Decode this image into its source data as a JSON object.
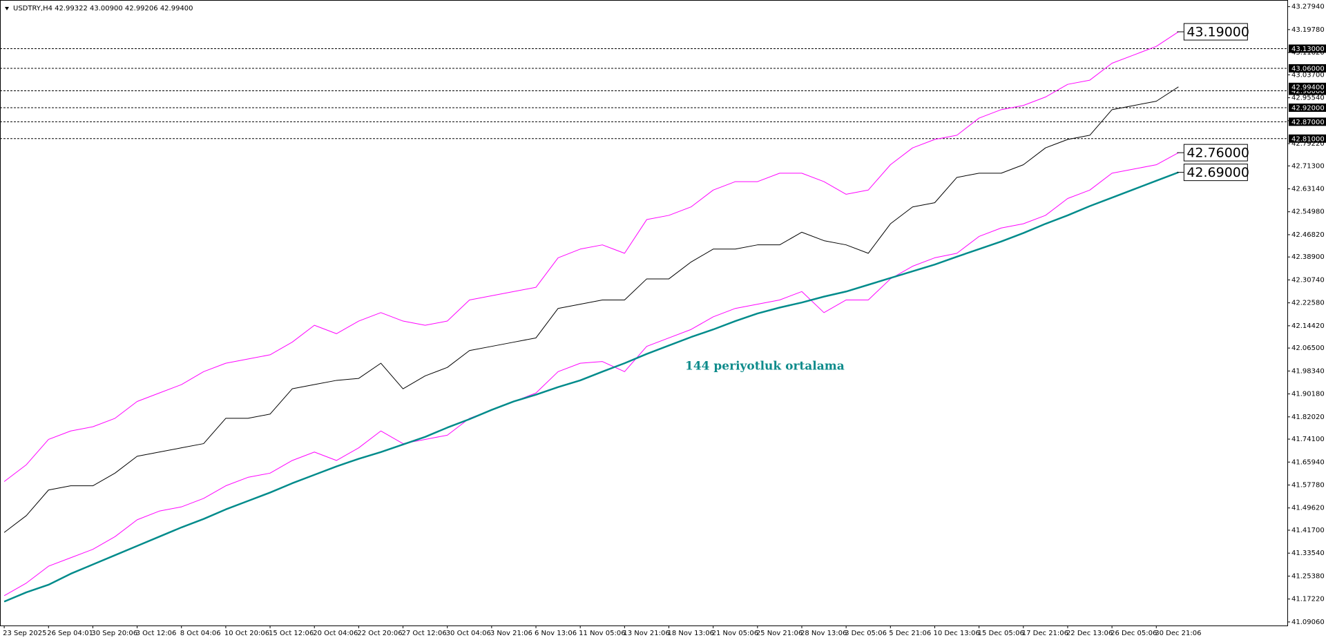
{
  "chart_data": {
    "type": "line",
    "title": "USDTRY,H4  42.99322 43.00900 42.99206 42.99400",
    "categories": [
      "23 Sep 2025",
      null,
      "26 Sep 04:01",
      null,
      "30 Sep 20:06",
      null,
      "3 Oct 12:06",
      null,
      "8 Oct 04:06",
      null,
      "10 Oct 20:06",
      null,
      "15 Oct 12:06",
      null,
      "20 Oct 04:06",
      null,
      "22 Oct 20:06",
      null,
      "27 Oct 12:06",
      null,
      "30 Oct 04:06",
      null,
      "3 Nov 21:06",
      null,
      "6 Nov 13:06",
      null,
      "11 Nov 05:06",
      null,
      "13 Nov 21:06",
      null,
      "18 Nov 13:06",
      null,
      "21 Nov 05:06",
      null,
      "25 Nov 21:06",
      null,
      "28 Nov 13:06",
      null,
      "3 Dec 05:06",
      null,
      "5 Dec 21:06",
      null,
      "10 Dec 13:06",
      null,
      "15 Dec 05:06",
      null,
      "17 Dec 21:06",
      null,
      "22 Dec 13:06",
      null,
      "26 Dec 05:06",
      null,
      "30 Dec 21:06",
      null
    ],
    "series": [
      {
        "color": "#ff00ff",
        "width": 1,
        "values": [
          41.59,
          41.65,
          41.74,
          41.77,
          41.785,
          41.815,
          41.875,
          41.905,
          41.935,
          41.981,
          42.011,
          42.026,
          42.041,
          42.086,
          42.146,
          42.116,
          42.161,
          42.191,
          42.161,
          42.146,
          42.161,
          42.236,
          42.251,
          42.266,
          42.281,
          42.386,
          42.417,
          42.432,
          42.402,
          42.522,
          42.537,
          42.567,
          42.627,
          42.657,
          42.657,
          42.687,
          42.687,
          42.657,
          42.612,
          42.627,
          42.717,
          42.777,
          42.807,
          42.822,
          42.883,
          42.913,
          42.928,
          42.958,
          43.003,
          43.018,
          43.078,
          43.108,
          43.138,
          43.19
        ]
      },
      {
        "color": "#ff00ff",
        "width": 1,
        "values": [
          41.184,
          41.229,
          41.289,
          41.319,
          41.349,
          41.394,
          41.454,
          41.485,
          41.5,
          41.53,
          41.575,
          41.605,
          41.62,
          41.665,
          41.695,
          41.665,
          41.71,
          41.77,
          41.725,
          41.74,
          41.755,
          41.815,
          41.845,
          41.875,
          41.905,
          41.981,
          42.011,
          42.017,
          41.981,
          42.071,
          42.101,
          42.131,
          42.176,
          42.206,
          42.221,
          42.236,
          42.266,
          42.191,
          42.236,
          42.236,
          42.311,
          42.356,
          42.386,
          42.402,
          42.462,
          42.492,
          42.507,
          42.537,
          42.597,
          42.627,
          42.687,
          42.702,
          42.717,
          42.76
        ]
      },
      {
        "color": "#008b8b",
        "width": 2.5,
        "values": [
          41.163,
          41.196,
          41.223,
          41.262,
          41.295,
          41.328,
          41.361,
          41.394,
          41.427,
          41.457,
          41.491,
          41.521,
          41.551,
          41.584,
          41.614,
          41.644,
          41.671,
          41.695,
          41.722,
          41.749,
          41.782,
          41.812,
          41.845,
          41.875,
          41.899,
          41.926,
          41.95,
          41.981,
          42.011,
          42.044,
          42.074,
          42.104,
          42.131,
          42.161,
          42.188,
          42.209,
          42.227,
          42.248,
          42.266,
          42.29,
          42.314,
          42.338,
          42.362,
          42.39,
          42.417,
          42.444,
          42.474,
          42.507,
          42.537,
          42.57,
          42.6,
          42.63,
          42.66,
          42.69
        ]
      },
      {
        "color": "#000000",
        "width": 1,
        "values": [
          41.409,
          41.469,
          41.56,
          41.575,
          41.575,
          41.62,
          41.68,
          41.695,
          41.71,
          41.725,
          41.815,
          41.815,
          41.83,
          41.92,
          41.935,
          41.95,
          41.957,
          42.011,
          41.92,
          41.966,
          41.996,
          42.056,
          42.071,
          42.086,
          42.101,
          42.206,
          42.221,
          42.236,
          42.236,
          42.311,
          42.311,
          42.371,
          42.417,
          42.417,
          42.432,
          42.432,
          42.477,
          42.447,
          42.432,
          42.402,
          42.507,
          42.567,
          42.582,
          42.672,
          42.687,
          42.687,
          42.717,
          42.777,
          42.807,
          42.822,
          42.913,
          42.928,
          42.943,
          42.994
        ]
      }
    ],
    "ylim": [
      41.078,
      43.294
    ],
    "yticks": [
      {
        "value": 43.2794,
        "label": "43.27940"
      },
      {
        "value": 43.1978,
        "label": "43.19780"
      },
      {
        "value": 43.1162,
        "label": "43.11620"
      },
      {
        "value": 43.037,
        "label": "43.03700"
      },
      {
        "value": 42.9554,
        "label": "42.95540"
      },
      {
        "value": 42.8738,
        "label": "42.87380"
      },
      {
        "value": 42.7922,
        "label": "42.79220"
      },
      {
        "value": 42.713,
        "label": "42.71300"
      },
      {
        "value": 42.6314,
        "label": "42.63140"
      },
      {
        "value": 42.5498,
        "label": "42.54980"
      },
      {
        "value": 42.4682,
        "label": "42.46820"
      },
      {
        "value": 42.389,
        "label": "42.38900"
      },
      {
        "value": 42.3074,
        "label": "42.30740"
      },
      {
        "value": 42.2258,
        "label": "42.22580"
      },
      {
        "value": 42.1442,
        "label": "42.14420"
      },
      {
        "value": 42.065,
        "label": "42.06500"
      },
      {
        "value": 41.9834,
        "label": "41.98340"
      },
      {
        "value": 41.9018,
        "label": "41.90180"
      },
      {
        "value": 41.8202,
        "label": "41.82020"
      },
      {
        "value": 41.741,
        "label": "41.74100"
      },
      {
        "value": 41.6594,
        "label": "41.65940"
      },
      {
        "value": 41.5778,
        "label": "41.57780"
      },
      {
        "value": 41.4962,
        "label": "41.49620"
      },
      {
        "value": 41.417,
        "label": "41.41700"
      },
      {
        "value": 41.3354,
        "label": "41.33540"
      },
      {
        "value": 41.2538,
        "label": "41.25380"
      },
      {
        "value": 41.1722,
        "label": "41.17220"
      },
      {
        "value": 41.0906,
        "label": "41.09060"
      }
    ],
    "levels": [
      {
        "value": 43.13,
        "label": "43.13000"
      },
      {
        "value": 43.06,
        "label": "43.06000"
      },
      {
        "value": 42.98,
        "label": "42.98000"
      },
      {
        "value": 42.92,
        "label": "42.92000"
      },
      {
        "value": 42.87,
        "label": "42.87000"
      },
      {
        "value": 42.81,
        "label": "42.81000"
      }
    ],
    "current_price": {
      "value": 42.994,
      "label": "42.99400"
    },
    "price_labels": [
      {
        "value": 43.19,
        "label": "43.19000"
      },
      {
        "value": 42.76,
        "label": "42.76000"
      },
      {
        "value": 42.69,
        "label": "42.69000"
      }
    ],
    "annotation": "144 periyotluk ortalama"
  }
}
